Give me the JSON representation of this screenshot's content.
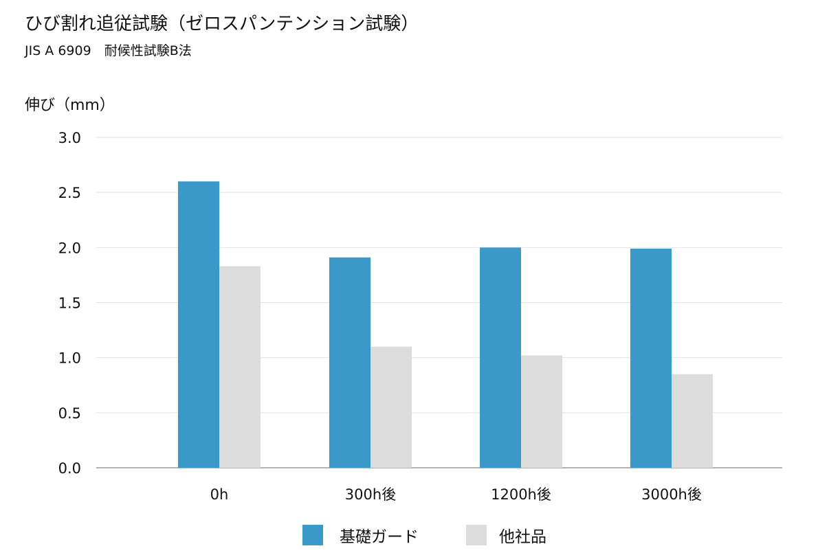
{
  "title": "ひび割れ追従試験（ゼロスパンテンション試験）",
  "subtitle": "JIS A 6909　耐候性試験B法",
  "chart_data": {
    "type": "bar",
    "ylabel": "伸び（mm）",
    "ylim": [
      0,
      3.0
    ],
    "yticks": [
      "0.0",
      "0.5",
      "1.0",
      "1.5",
      "2.0",
      "2.5",
      "3.0"
    ],
    "ytick_values": [
      0,
      0.5,
      1.0,
      1.5,
      2.0,
      2.5,
      3.0
    ],
    "grid": true,
    "legend_position": "bottom-center",
    "categories": [
      "0h",
      "300h後",
      "1200h後",
      "3000h後"
    ],
    "series": [
      {
        "name": "基礎ガード",
        "color": "#3a99c9",
        "values": [
          2.6,
          1.91,
          2.0,
          1.99
        ]
      },
      {
        "name": "他社品",
        "color": "#dcdcdc",
        "values": [
          1.83,
          1.1,
          1.02,
          0.85
        ]
      }
    ]
  }
}
